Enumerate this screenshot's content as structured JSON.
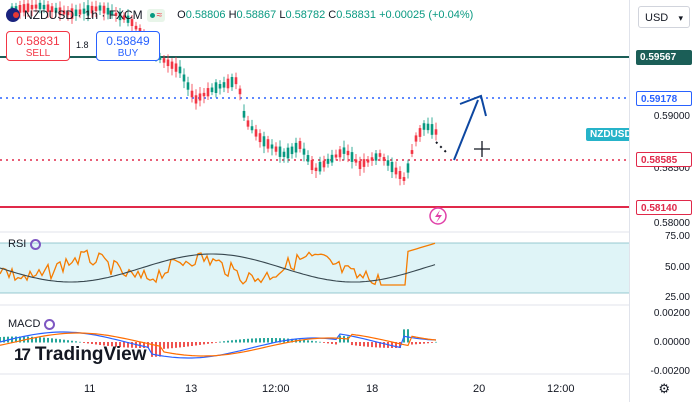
{
  "header": {
    "symbol": "NZDUSD · 1h · FXCM",
    "ohlc": {
      "o_key": "O",
      "o": "0.58806",
      "h_key": "H",
      "h": "0.58867",
      "l_key": "L",
      "l": "0.58782",
      "c_key": "C",
      "c": "0.58831",
      "change": "+0.00025 (+0.04%)"
    }
  },
  "trade": {
    "sell_price": "0.58831",
    "sell_label": "SELL",
    "buy_price": "0.58849",
    "buy_label": "BUY",
    "spread": "1.8"
  },
  "currency_select": "USD",
  "price_scale": [
    "0.59000",
    "0.58500",
    "0.58000",
    "75.00",
    "50.00",
    "25.00",
    "0.00200",
    "0.00000",
    "-0.00200"
  ],
  "price_tags": {
    "res1": "0.59567",
    "target": "0.59178",
    "support": "0.58585",
    "low": "0.58140"
  },
  "symbol_label": "NZDUSD",
  "indicators": {
    "rsi": "RSI",
    "macd": "MACD"
  },
  "brand": "TradingView",
  "x_labels": [
    "11",
    "13",
    "12:00",
    "18",
    "20",
    "12:00"
  ],
  "colors": {
    "up": "#089981",
    "down": "#f23645",
    "navy": "#0d3b66",
    "blue": "#2962ff",
    "teal": "#1b5e57"
  }
}
